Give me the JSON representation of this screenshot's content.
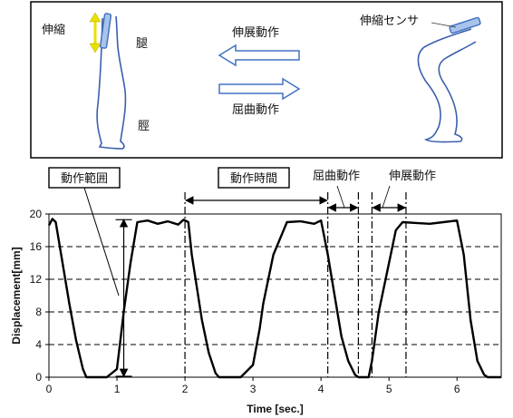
{
  "diagram": {
    "label_stretch_sensor_left": "伸縮",
    "label_thigh": "腿",
    "label_shin": "脛",
    "label_extension_motion": "伸展動作",
    "label_flexion_motion": "屈曲動作",
    "label_stretch_sensor_right": "伸縮センサ"
  },
  "annotations": {
    "motion_range": "動作範囲",
    "motion_time": "動作時間",
    "flexion": "屈曲動作",
    "extension": "伸展動作"
  },
  "colors": {
    "sensor": "#4472c4",
    "leg_outline": "#3a5fae",
    "arrow_yellow": "#e8e000",
    "line": "#000000"
  },
  "chart_data": {
    "type": "line",
    "title": "",
    "xlabel": "Time [sec.]",
    "ylabel": "Displacement[mm]",
    "xlim": [
      0,
      6.65
    ],
    "ylim": [
      0,
      20
    ],
    "xticks": [
      "0",
      "1",
      "2",
      "3",
      "4",
      "5",
      "6"
    ],
    "yticks": [
      "0",
      "4",
      "8",
      "12",
      "16",
      "20"
    ],
    "grid": "horizontal dashed",
    "series": [
      {
        "x": [
          0,
          0.05,
          0.1,
          0.2,
          0.3,
          0.4,
          0.5,
          0.55,
          0.7,
          0.85,
          1.0,
          1.05,
          1.1,
          1.2,
          1.3,
          1.45,
          1.6,
          1.75,
          1.9,
          1.98,
          2.05,
          2.1,
          2.25,
          2.35,
          2.45,
          2.5,
          2.65,
          2.82,
          3.0,
          3.1,
          3.15,
          3.3,
          3.5,
          3.7,
          3.9,
          4.0,
          4.1,
          4.3,
          4.4,
          4.5,
          4.55,
          4.7,
          4.75,
          4.85,
          5.0,
          5.1,
          5.2,
          5.4,
          5.6,
          5.8,
          6.0,
          6.1,
          6.2,
          6.3,
          6.4,
          6.45,
          6.65
        ],
        "y": [
          18.6,
          19.4,
          19.0,
          14.0,
          9.0,
          4.5,
          1.0,
          0,
          0,
          0,
          1.0,
          4.5,
          8.0,
          14.0,
          19.0,
          19.2,
          18.8,
          19.1,
          18.7,
          19.3,
          19.0,
          15.0,
          7.0,
          3.0,
          0.5,
          0,
          0,
          0,
          1.5,
          6.0,
          9.0,
          15.0,
          19.0,
          19.1,
          18.8,
          19.2,
          15.0,
          5.0,
          2.0,
          0.3,
          0,
          0,
          2.0,
          8.0,
          14.0,
          18.0,
          19.0,
          18.9,
          18.8,
          19.0,
          19.2,
          15.0,
          7.0,
          2.0,
          0.3,
          0,
          0
        ]
      }
    ],
    "vlines_dashdot": [
      2.0,
      4.1,
      4.55,
      4.75,
      5.25
    ],
    "motion_range_x": 1.1
  }
}
